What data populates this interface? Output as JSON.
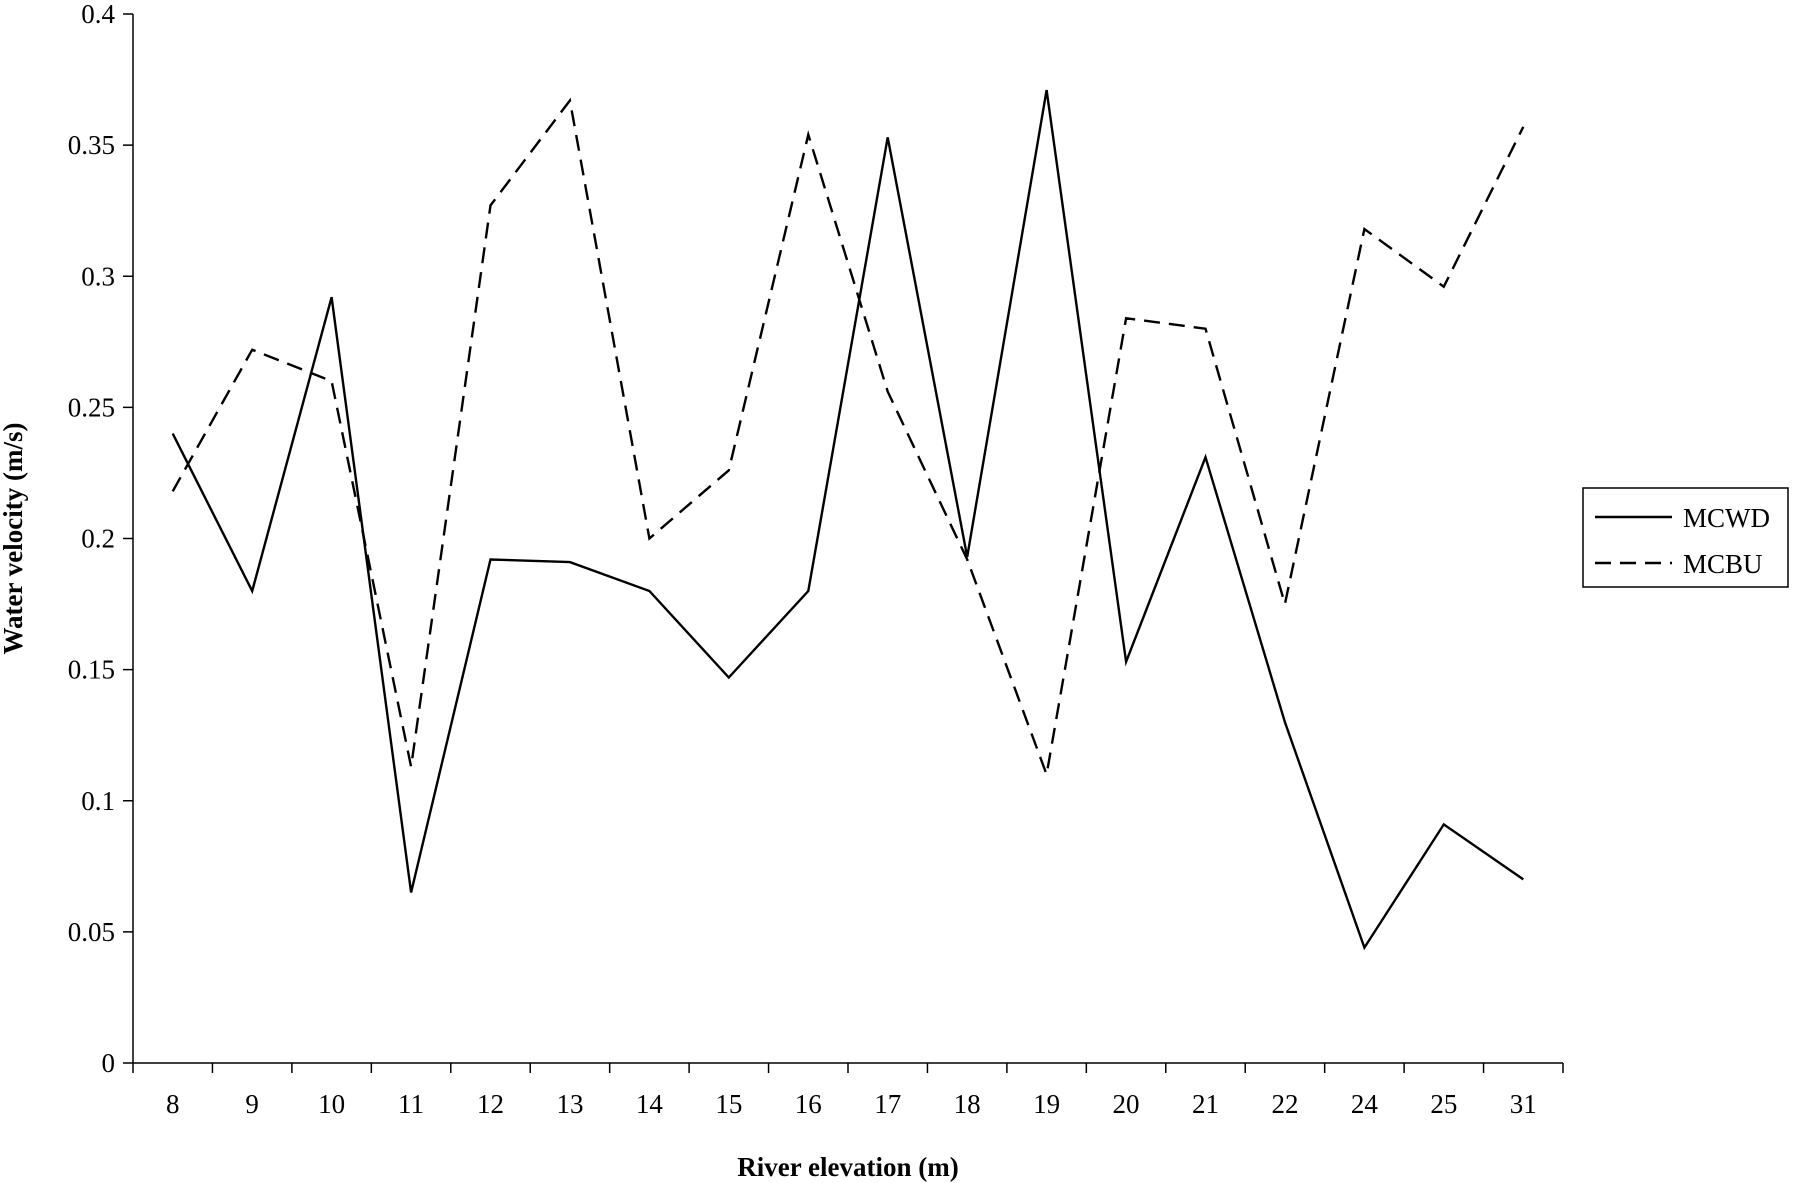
{
  "chart_data": {
    "type": "line",
    "xlabel": "River elevation (m)",
    "ylabel": "Water velocity (m/s)",
    "categories": [
      "8",
      "9",
      "10",
      "11",
      "12",
      "13",
      "14",
      "15",
      "16",
      "17",
      "18",
      "19",
      "20",
      "21",
      "22",
      "24",
      "25",
      "31"
    ],
    "ylim": [
      0,
      0.4
    ],
    "yticks": [
      0,
      0.05,
      0.1,
      0.15,
      0.2,
      0.25,
      0.3,
      0.35,
      0.4
    ],
    "ytick_labels": [
      "0",
      "0.05",
      "0.1",
      "0.15",
      "0.2",
      "0.25",
      "0.3",
      "0.35",
      "0.4"
    ],
    "grid": false,
    "legend_position": "right",
    "series": [
      {
        "name": "MCWD",
        "style": "solid",
        "color": "#000000",
        "values": [
          0.24,
          0.18,
          0.292,
          0.065,
          0.192,
          0.191,
          0.18,
          0.147,
          0.18,
          0.353,
          0.193,
          0.371,
          0.153,
          0.231,
          0.13,
          0.044,
          0.091,
          0.07
        ]
      },
      {
        "name": "MCBU",
        "style": "dashed",
        "color": "#000000",
        "values": [
          0.218,
          0.272,
          0.26,
          0.113,
          0.327,
          0.367,
          0.2,
          0.226,
          0.354,
          0.256,
          0.192,
          0.11,
          0.284,
          0.28,
          0.175,
          0.318,
          0.296,
          0.357
        ]
      }
    ]
  }
}
